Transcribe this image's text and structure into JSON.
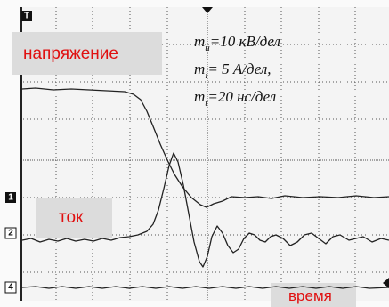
{
  "labels": {
    "voltage": "напряжение",
    "current": "ток",
    "time": "время"
  },
  "scales": [
    {
      "symbol": "m",
      "sub": "u",
      "text": "=10 кВ/дел"
    },
    {
      "symbol": "m",
      "sub": "i",
      "text": "= 5 А/дел,"
    },
    {
      "symbol": "m",
      "sub": "t",
      "text": "=20 нс/дел"
    }
  ],
  "markers": {
    "trigger": "T",
    "ch1": "1",
    "ch2": "2",
    "ch4": "4"
  }
}
